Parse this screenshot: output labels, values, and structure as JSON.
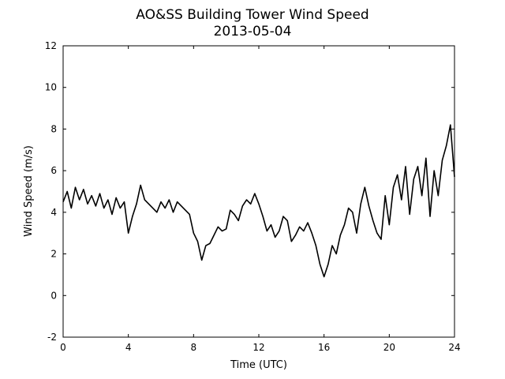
{
  "chart_data": {
    "type": "line",
    "title": "AO&SS Building Tower Wind Speed",
    "subtitle": "2013-05-04",
    "x_label": "Time (UTC)",
    "y_label": "Wind Speed (m/s)",
    "x": [
      0,
      0.25,
      0.5,
      0.75,
      1,
      1.25,
      1.5,
      1.75,
      2,
      2.25,
      2.5,
      2.75,
      3,
      3.25,
      3.5,
      3.75,
      4,
      4.25,
      4.5,
      4.75,
      5,
      5.25,
      5.5,
      5.75,
      6,
      6.25,
      6.5,
      6.75,
      7,
      7.25,
      7.5,
      7.75,
      8,
      8.25,
      8.5,
      8.75,
      9,
      9.25,
      9.5,
      9.75,
      10,
      10.25,
      10.5,
      10.75,
      11,
      11.25,
      11.5,
      11.75,
      12,
      12.25,
      12.5,
      12.75,
      13,
      13.25,
      13.5,
      13.75,
      14,
      14.25,
      14.5,
      14.75,
      15,
      15.25,
      15.5,
      15.75,
      16,
      16.25,
      16.5,
      16.75,
      17,
      17.25,
      17.5,
      17.75,
      18,
      18.25,
      18.5,
      18.75,
      19,
      19.25,
      19.5,
      19.75,
      20,
      20.25,
      20.5,
      20.75,
      21,
      21.25,
      21.5,
      21.75,
      22,
      22.25,
      22.5,
      22.75,
      23,
      23.25,
      23.5,
      23.75,
      24
    ],
    "series": [
      {
        "name": "Wind Speed",
        "color": "#000000",
        "values": [
          4.5,
          5.0,
          4.2,
          5.2,
          4.6,
          5.1,
          4.4,
          4.8,
          4.3,
          4.9,
          4.2,
          4.6,
          3.9,
          4.7,
          4.2,
          4.5,
          3.0,
          3.8,
          4.4,
          5.3,
          4.6,
          4.4,
          4.2,
          4.0,
          4.5,
          4.2,
          4.6,
          4.0,
          4.5,
          4.3,
          4.1,
          3.9,
          3.0,
          2.6,
          1.7,
          2.4,
          2.5,
          2.9,
          3.3,
          3.1,
          3.2,
          4.1,
          3.9,
          3.6,
          4.3,
          4.6,
          4.4,
          4.9,
          4.4,
          3.8,
          3.1,
          3.4,
          2.8,
          3.1,
          3.8,
          3.6,
          2.6,
          2.9,
          3.3,
          3.1,
          3.5,
          3.0,
          2.4,
          1.5,
          0.9,
          1.5,
          2.4,
          2.0,
          2.9,
          3.4,
          4.2,
          4.0,
          3.0,
          4.4,
          5.2,
          4.3,
          3.6,
          3.0,
          2.7,
          4.8,
          3.4,
          5.2,
          5.8,
          4.6,
          6.2,
          3.9,
          5.6,
          6.2,
          4.8,
          6.6,
          3.8,
          6.0,
          4.8,
          6.5,
          7.2,
          8.2,
          5.7
        ]
      }
    ],
    "xlim": [
      0,
      24
    ],
    "xticks": [
      0,
      4,
      8,
      12,
      16,
      20,
      24
    ],
    "ylim": [
      -2,
      12
    ],
    "yticks": [
      -2,
      0,
      2,
      4,
      6,
      8,
      10,
      12
    ]
  }
}
